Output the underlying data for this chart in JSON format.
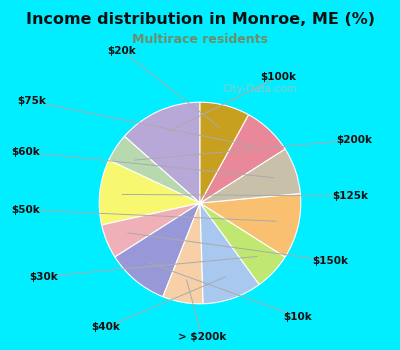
{
  "title": "Income distribution in Monroe, ME (%)",
  "subtitle": "Multirace residents",
  "title_color": "#111111",
  "subtitle_color": "#6b8e6b",
  "bg_cyan": "#00eeff",
  "bg_inner": "#e8f5ee",
  "watermark": "City-Data.com",
  "labels": [
    "$100k",
    "$200k",
    "$125k",
    "$150k",
    "$10k",
    "> $200k",
    "$40k",
    "$30k",
    "$50k",
    "$60k",
    "$75k",
    "$20k"
  ],
  "values": [
    13.5,
    4.5,
    10.5,
    5.5,
    10.0,
    6.5,
    9.5,
    6.0,
    10.5,
    7.5,
    8.0,
    8.0
  ],
  "colors": [
    "#b8a8d8",
    "#b8d8b0",
    "#f8f870",
    "#f0b0b8",
    "#9898d8",
    "#f8d0a8",
    "#a8c8f0",
    "#c0e870",
    "#f8c070",
    "#c8c0a8",
    "#e88898",
    "#c8a020"
  ],
  "label_fontsize": 7.5,
  "startangle": 90
}
